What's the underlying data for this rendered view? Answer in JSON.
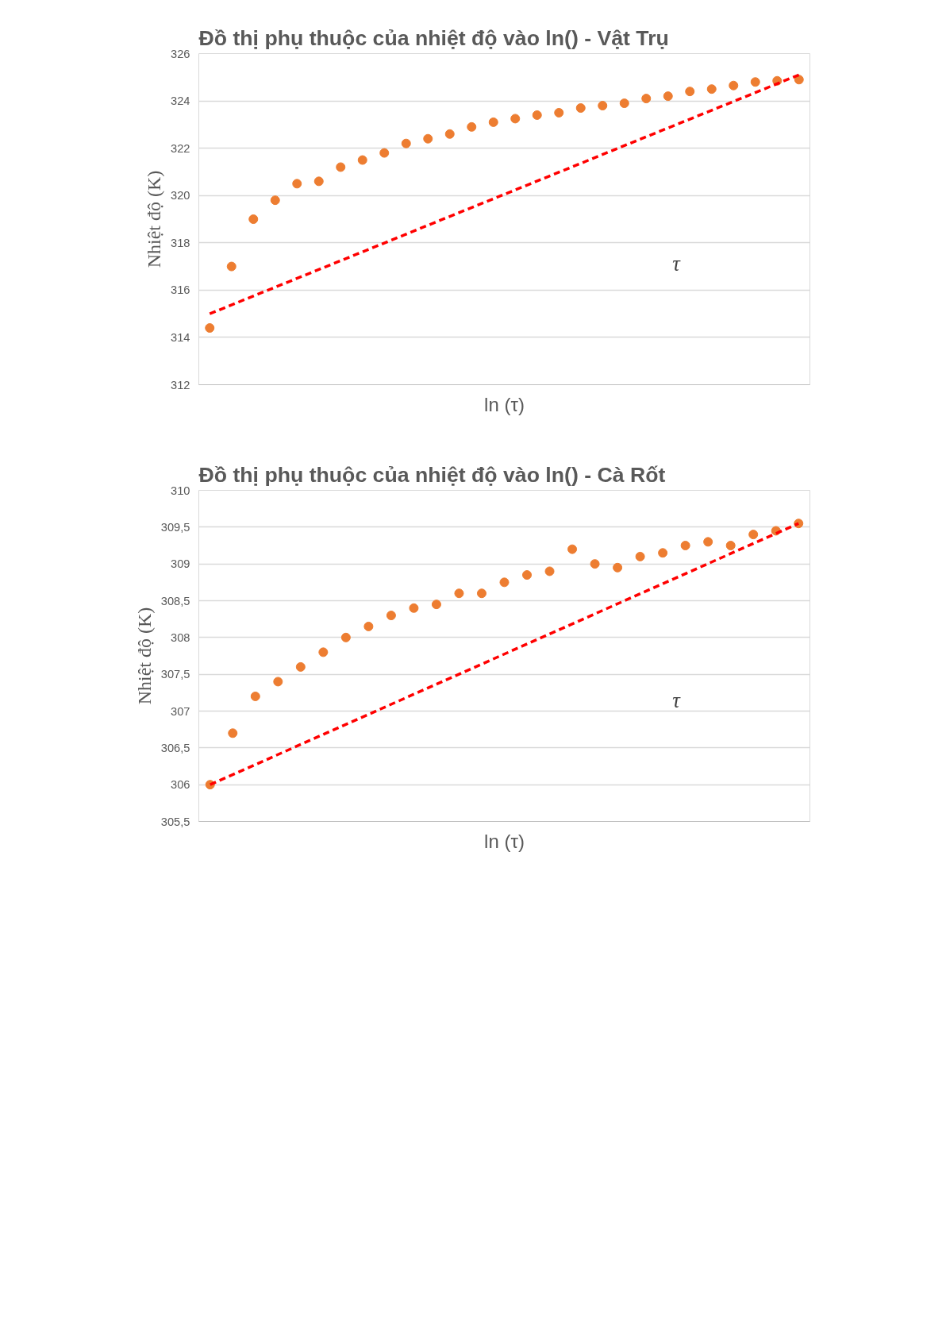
{
  "chart_data": [
    {
      "type": "scatter",
      "title": "Đồ thị phụ thuộc của nhiệt độ vào ln() - Vật Trụ",
      "xlabel": "ln (τ)",
      "ylabel": "Nhiệt độ (K)",
      "annotations": [
        "τ"
      ],
      "categories": [
        null,
        null,
        null,
        null,
        null,
        null,
        null,
        null,
        null,
        null,
        null,
        null,
        null,
        null,
        null,
        null,
        null,
        null,
        null,
        null,
        null,
        null,
        null,
        null,
        null,
        null,
        null,
        null
      ],
      "ylim": [
        312,
        326
      ],
      "yticks": [
        312,
        314,
        316,
        318,
        320,
        322,
        324,
        326
      ],
      "grid": "y",
      "marker": "circle",
      "series": [
        {
          "type": "scatter",
          "color": "#ed7d31",
          "values": [
            314.4,
            317.0,
            319.0,
            319.8,
            320.5,
            320.6,
            321.2,
            321.5,
            321.8,
            322.2,
            322.4,
            322.6,
            322.9,
            323.1,
            323.25,
            323.4,
            323.5,
            323.7,
            323.8,
            323.9,
            324.1,
            324.2,
            324.4,
            324.5,
            324.65,
            324.8,
            324.85,
            324.9
          ]
        },
        {
          "type": "line",
          "color": "#ff0000",
          "line_style": "dashed",
          "marker": "none",
          "values": [
            315.0,
            null,
            null,
            null,
            null,
            null,
            null,
            null,
            null,
            null,
            null,
            null,
            null,
            null,
            null,
            null,
            null,
            null,
            null,
            null,
            null,
            null,
            null,
            null,
            null,
            null,
            null,
            325.1
          ]
        }
      ]
    },
    {
      "type": "scatter",
      "title": "Đồ thị phụ thuộc của nhiệt độ vào ln() - Cà Rốt",
      "xlabel": "ln (τ)",
      "ylabel": "Nhiệt độ (K)",
      "annotations": [
        "τ"
      ],
      "categories": [
        null,
        null,
        null,
        null,
        null,
        null,
        null,
        null,
        null,
        null,
        null,
        null,
        null,
        null,
        null,
        null,
        null,
        null,
        null,
        null,
        null,
        null,
        null,
        null,
        null,
        null,
        null
      ],
      "ylim": [
        305.5,
        310
      ],
      "yticks": [
        {
          "value": 305.5,
          "label": "305,5"
        },
        306,
        {
          "value": 306.5,
          "label": "306,5"
        },
        307,
        {
          "value": 307.5,
          "label": "307,5"
        },
        308,
        {
          "value": 308.5,
          "label": "308,5"
        },
        309,
        {
          "value": 309.5,
          "label": "309,5"
        },
        310
      ],
      "grid": "y",
      "marker": "circle",
      "series": [
        {
          "type": "scatter",
          "color": "#ed7d31",
          "values": [
            306.0,
            306.7,
            307.2,
            307.4,
            307.6,
            307.8,
            308.0,
            308.15,
            308.3,
            308.4,
            308.45,
            308.6,
            308.6,
            308.75,
            308.85,
            308.9,
            309.2,
            309.0,
            308.95,
            309.1,
            309.15,
            309.25,
            309.3,
            309.25,
            309.4,
            309.45,
            309.55
          ]
        },
        {
          "type": "line",
          "color": "#ff0000",
          "line_style": "dashed",
          "marker": "none",
          "values": [
            306.0,
            null,
            null,
            null,
            null,
            null,
            null,
            null,
            null,
            null,
            null,
            null,
            null,
            null,
            null,
            null,
            null,
            null,
            null,
            null,
            null,
            null,
            null,
            null,
            null,
            null,
            309.55
          ]
        }
      ]
    }
  ]
}
